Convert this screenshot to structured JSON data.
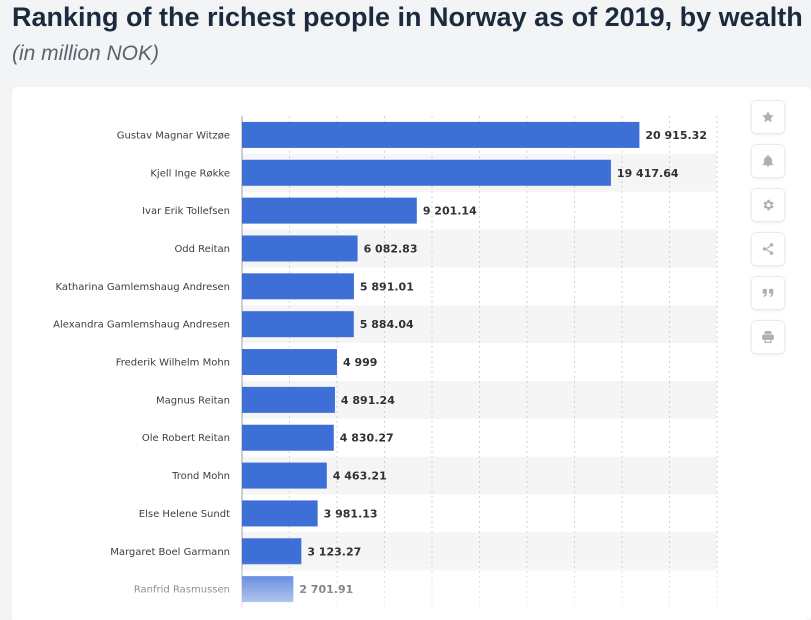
{
  "page": {
    "title": "Ranking of the richest people in Norway as of 2019, by wealth",
    "subtitle": "(in million NOK)"
  },
  "toolbar": {
    "icons": [
      "star-icon",
      "bell-icon",
      "gear-icon",
      "share-icon",
      "quote-icon",
      "print-icon"
    ]
  },
  "colors": {
    "bar": "#3e6fd6",
    "band": "#f5f5f5"
  },
  "chart_data": {
    "type": "bar",
    "orientation": "horizontal",
    "title": "Ranking of the richest people in Norway as of 2019, by wealth",
    "subtitle": "(in million NOK)",
    "xlabel": "",
    "ylabel": "",
    "xlim": [
      0,
      25000
    ],
    "grid": true,
    "categories": [
      "Gustav Magnar Witzøe",
      "Kjell Inge Røkke",
      "Ivar Erik Tollefsen",
      "Odd Reitan",
      "Katharina Gamlemshaug Andresen",
      "Alexandra Gamlemshaug Andresen",
      "Frederik Wilhelm Mohn",
      "Magnus Reitan",
      "Ole Robert Reitan",
      "Trond Mohn",
      "Else Helene Sundt",
      "Margaret Boel Garmann",
      "Ranfrid Rasmussen"
    ],
    "values": [
      20915.32,
      19417.64,
      9201.14,
      6082.83,
      5891.01,
      5884.04,
      4999,
      4891.24,
      4830.27,
      4463.21,
      3981.13,
      3123.27,
      2701.91
    ],
    "value_labels": [
      "20 915.32",
      "19 417.64",
      "9 201.14",
      "6 082.83",
      "5 891.01",
      "5 884.04",
      "4 999",
      "4 891.24",
      "4 830.27",
      "4 463.21",
      "3 981.13",
      "3 123.27",
      "2 701.91"
    ]
  }
}
